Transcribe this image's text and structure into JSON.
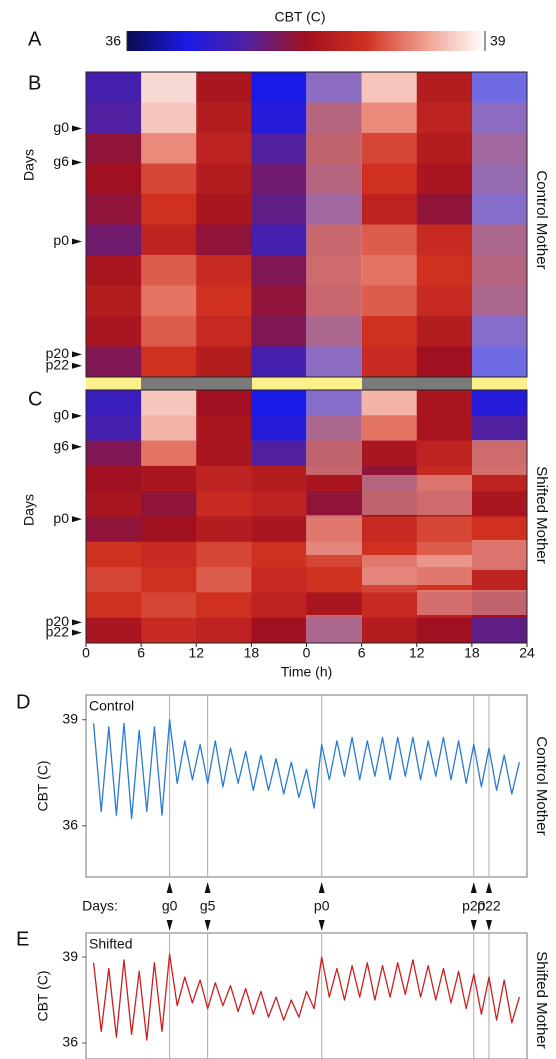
{
  "panel_labels": [
    "A",
    "B",
    "C",
    "D",
    "E"
  ],
  "colorbar": {
    "title": "CBT (C)",
    "zlim": [
      36,
      39
    ],
    "zticks": [
      36,
      39
    ],
    "colors": [
      "#0a0a50",
      "#1a1ae6",
      "#5020a0",
      "#a01020",
      "#d03020",
      "#f0a090",
      "#ffffff"
    ]
  },
  "days_label": "Days:",
  "chart_data": [
    {
      "type": "heatmap",
      "side_title": "Control Mother",
      "ylabel": "Days",
      "xlim": [
        0,
        48
      ],
      "ylim": [
        -10,
        44
      ],
      "yticks": [
        {
          "value": 0,
          "label": "g0"
        },
        {
          "value": 6,
          "label": "g6"
        },
        {
          "value": 20,
          "label": "p0"
        },
        {
          "value": 40,
          "label": "p20"
        },
        {
          "value": 42,
          "label": "p22"
        }
      ],
      "z": [
        [
          36.9,
          38.8,
          37.6,
          36.5,
          37.0,
          38.7,
          37.7,
          36.6
        ],
        [
          37.0,
          38.7,
          37.7,
          36.6,
          37.4,
          38.4,
          37.8,
          37.0
        ],
        [
          37.4,
          38.4,
          37.8,
          37.0,
          37.5,
          38.1,
          37.7,
          37.2
        ],
        [
          37.5,
          38.1,
          37.7,
          37.2,
          37.4,
          38.0,
          37.6,
          37.1
        ],
        [
          37.4,
          38.0,
          37.6,
          37.1,
          37.2,
          37.8,
          37.4,
          36.9
        ],
        [
          37.2,
          37.8,
          37.4,
          36.9,
          37.6,
          38.2,
          37.9,
          37.3
        ],
        [
          37.6,
          38.2,
          37.9,
          37.3,
          37.7,
          38.3,
          38.0,
          37.4
        ],
        [
          37.7,
          38.3,
          38.0,
          37.4,
          37.6,
          38.2,
          37.9,
          37.3
        ],
        [
          37.6,
          38.2,
          37.9,
          37.3,
          37.3,
          38.0,
          37.7,
          36.9
        ],
        [
          37.3,
          38.0,
          37.7,
          36.9,
          37.0,
          37.9,
          37.5,
          36.6
        ]
      ]
    },
    {
      "type": "heatmap",
      "side_title": "Shifted Mother",
      "ylabel": "Days",
      "xlabel": "Time (h)",
      "xlim": [
        0,
        48
      ],
      "ylim": [
        -5,
        44
      ],
      "xticks": [
        0,
        6,
        12,
        18,
        {
          "value": 24,
          "label": "0"
        },
        {
          "value": 30,
          "label": "6"
        },
        {
          "value": 36,
          "label": "12"
        },
        {
          "value": 42,
          "label": "18"
        },
        {
          "value": 48,
          "label": "24"
        }
      ],
      "yticks": [
        {
          "value": 0,
          "label": "g0"
        },
        {
          "value": 6,
          "label": "g6"
        },
        {
          "value": 20,
          "label": "p0"
        },
        {
          "value": 40,
          "label": "p20"
        },
        {
          "value": 42,
          "label": "p22"
        }
      ],
      "z": [
        [
          36.8,
          38.7,
          37.5,
          36.5,
          36.9,
          38.6,
          37.6,
          36.6
        ],
        [
          36.9,
          38.6,
          37.6,
          36.6,
          37.3,
          38.3,
          37.6,
          37.0
        ],
        [
          37.3,
          38.3,
          37.6,
          37.0,
          37.5,
          37.6,
          37.8,
          37.7
        ],
        [
          37.5,
          37.6,
          37.8,
          37.7,
          37.6,
          37.4,
          37.9,
          37.8
        ],
        [
          37.6,
          37.4,
          37.9,
          37.8,
          37.4,
          37.5,
          37.7,
          37.6
        ],
        [
          37.4,
          37.5,
          37.7,
          37.6,
          38.0,
          37.9,
          38.1,
          38.0
        ],
        [
          38.0,
          37.9,
          38.1,
          38.0,
          38.1,
          38.0,
          38.2,
          37.9
        ],
        [
          38.1,
          38.0,
          38.2,
          37.9,
          38.0,
          38.1,
          38.0,
          37.8
        ],
        [
          38.0,
          38.1,
          38.0,
          37.8,
          37.6,
          37.9,
          37.8,
          37.5
        ],
        [
          37.6,
          37.9,
          37.8,
          37.5,
          37.3,
          37.7,
          37.5,
          37.1
        ]
      ]
    },
    {
      "type": "line",
      "title": "Control",
      "side_title": "Control Mother",
      "ylabel": "CBT (C)",
      "color": "#2b7bd0",
      "xlim": [
        -11,
        47
      ],
      "ylim": [
        34.55,
        39.7
      ],
      "yticks": [
        36,
        39
      ],
      "xticks": [
        {
          "value": 0,
          "label": "g0"
        },
        {
          "value": 5,
          "label": "g5"
        },
        {
          "value": 20,
          "label": "p0"
        },
        {
          "value": 40,
          "label": "p20"
        },
        {
          "value": 42,
          "label": "p22"
        }
      ],
      "x": [
        -10,
        -9,
        -8,
        -7,
        -6,
        -5,
        -4,
        -3,
        -2,
        -1,
        0,
        1,
        2,
        3,
        4,
        5,
        6,
        7,
        8,
        9,
        10,
        11,
        12,
        13,
        14,
        15,
        16,
        17,
        18,
        19,
        20,
        21,
        22,
        23,
        24,
        25,
        26,
        27,
        28,
        29,
        30,
        31,
        32,
        33,
        34,
        35,
        36,
        37,
        38,
        39,
        40,
        41,
        42,
        43,
        44,
        45,
        46
      ],
      "values": [
        38.9,
        36.4,
        38.8,
        36.3,
        38.9,
        36.2,
        38.7,
        36.4,
        38.8,
        36.3,
        39.0,
        37.2,
        38.4,
        37.3,
        38.3,
        37.2,
        38.4,
        37.1,
        38.2,
        37.2,
        38.1,
        37.0,
        38.0,
        37.0,
        37.9,
        36.9,
        37.8,
        36.8,
        37.6,
        36.5,
        38.3,
        37.3,
        38.4,
        37.4,
        38.5,
        37.3,
        38.4,
        37.4,
        38.5,
        37.3,
        38.5,
        37.4,
        38.5,
        37.3,
        38.4,
        37.4,
        38.5,
        37.3,
        38.4,
        37.2,
        38.3,
        37.1,
        38.2,
        37.0,
        38.0,
        36.9,
        37.8
      ]
    },
    {
      "type": "line",
      "title": "Shifted",
      "side_title": "Shifted Mother",
      "ylabel": "CBT (C)",
      "color": "#cc1f1f",
      "xlim": [
        -11,
        47
      ],
      "ylim": [
        35.44,
        39.84
      ],
      "yticks": [
        36,
        39
      ],
      "x": [
        -10,
        -9,
        -8,
        -7,
        -6,
        -5,
        -4,
        -3,
        -2,
        -1,
        0,
        1,
        2,
        3,
        4,
        5,
        6,
        7,
        8,
        9,
        10,
        11,
        12,
        13,
        14,
        15,
        16,
        17,
        18,
        19,
        20,
        21,
        22,
        23,
        24,
        25,
        26,
        27,
        28,
        29,
        30,
        31,
        32,
        33,
        34,
        35,
        36,
        37,
        38,
        39,
        40,
        41,
        42,
        43,
        44,
        45,
        46
      ],
      "values": [
        38.8,
        36.4,
        38.6,
        36.2,
        38.9,
        36.3,
        38.5,
        36.1,
        38.8,
        36.4,
        39.1,
        37.3,
        38.3,
        37.4,
        38.2,
        37.2,
        38.1,
        37.3,
        38.0,
        37.1,
        37.9,
        37.0,
        37.8,
        36.9,
        37.6,
        36.8,
        37.5,
        36.9,
        37.8,
        37.2,
        39.0,
        37.6,
        38.6,
        37.5,
        38.7,
        37.6,
        38.8,
        37.5,
        38.7,
        37.6,
        38.8,
        37.7,
        38.9,
        37.6,
        38.7,
        37.5,
        38.6,
        37.4,
        38.5,
        37.2,
        38.4,
        37.0,
        38.3,
        36.8,
        38.2,
        36.7,
        37.6
      ]
    }
  ]
}
